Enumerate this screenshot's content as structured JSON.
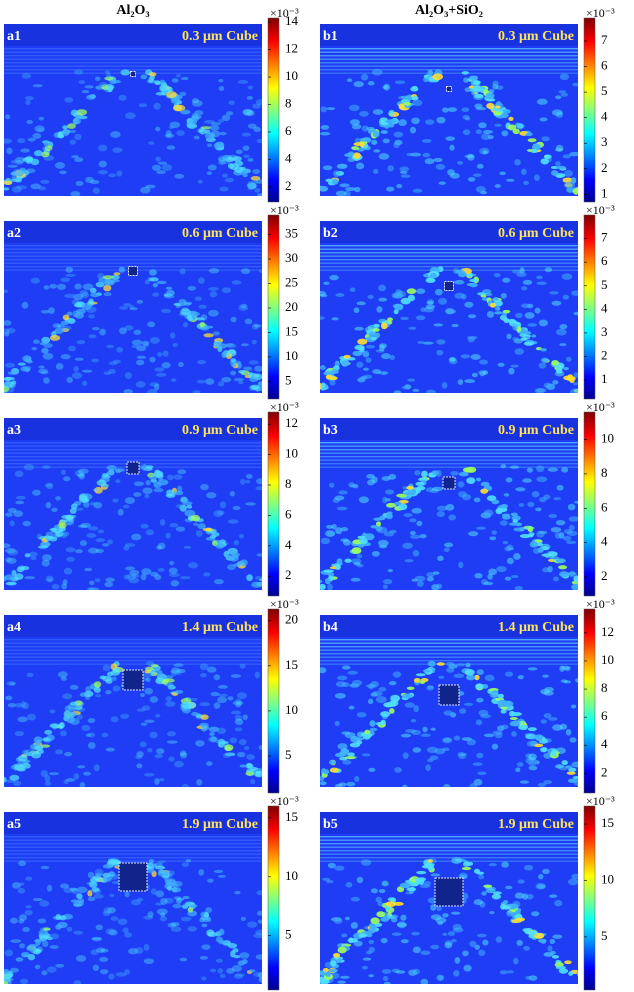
{
  "column_titles": [
    "Al₂O₃",
    "Al₂O₃+SiO₂"
  ],
  "panels": [
    {
      "label": "a1",
      "caption": "0.3 μm Cube",
      "colorbar": {
        "multiplier": "×10⁻³",
        "lim": [
          0.9,
          14.3
        ],
        "ticks": [
          2,
          4,
          6,
          8,
          10,
          12,
          14
        ]
      }
    },
    {
      "label": "a2",
      "caption": "0.6 μm Cube",
      "colorbar": {
        "multiplier": "×10⁻³",
        "lim": [
          1.4,
          39
        ],
        "ticks": [
          5,
          10,
          15,
          20,
          25,
          30,
          35
        ]
      }
    },
    {
      "label": "a3",
      "caption": "0.9 μm Cube",
      "colorbar": {
        "multiplier": "×10⁻³",
        "lim": [
          0.7,
          12.8
        ],
        "ticks": [
          2,
          4,
          6,
          8,
          10,
          12
        ]
      }
    },
    {
      "label": "a4",
      "caption": "1.4 μm Cube",
      "colorbar": {
        "multiplier": "×10⁻³",
        "lim": [
          0.9,
          21.3
        ],
        "ticks": [
          5,
          10,
          15,
          20
        ]
      }
    },
    {
      "label": "a5",
      "caption": "1.9 μm Cube",
      "colorbar": {
        "multiplier": "×10⁻³",
        "lim": [
          0.4,
          16
        ],
        "ticks": [
          5,
          10,
          15
        ]
      }
    },
    {
      "label": "b1",
      "caption": "0.3 μm Cube",
      "colorbar": {
        "multiplier": "×10⁻³",
        "lim": [
          0.7,
          7.9
        ],
        "ticks": [
          1,
          2,
          3,
          4,
          5,
          6,
          7
        ]
      }
    },
    {
      "label": "b2",
      "caption": "0.6 μm Cube",
      "colorbar": {
        "multiplier": "×10⁻³",
        "lim": [
          0.2,
          8
        ],
        "ticks": [
          1,
          2,
          3,
          4,
          5,
          6,
          7
        ]
      }
    },
    {
      "label": "b3",
      "caption": "0.9 μm Cube",
      "colorbar": {
        "multiplier": "×10⁻³",
        "lim": [
          0.9,
          11.6
        ],
        "ticks": [
          2,
          4,
          6,
          8,
          10
        ]
      }
    },
    {
      "label": "b4",
      "caption": "1.4 μm Cube",
      "colorbar": {
        "multiplier": "×10⁻³",
        "lim": [
          0.6,
          13.7
        ],
        "ticks": [
          2,
          4,
          6,
          8,
          10,
          12
        ]
      }
    },
    {
      "label": "b5",
      "caption": "1.9 μm Cube",
      "colorbar": {
        "multiplier": "×10⁻³",
        "lim": [
          0.3,
          16.6
        ],
        "ticks": [
          5,
          10,
          15
        ]
      }
    }
  ]
}
